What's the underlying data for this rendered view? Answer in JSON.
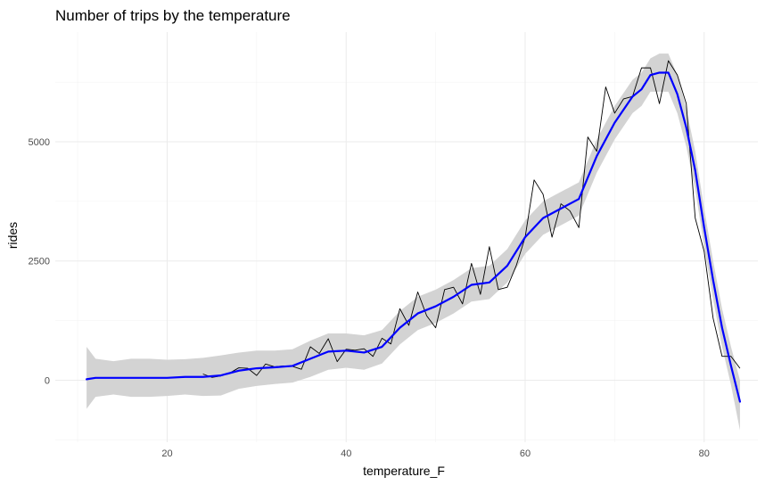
{
  "chart_data": {
    "type": "line",
    "title": "Number of trips by the temperature",
    "xlabel": "temperature_F",
    "ylabel": "rides",
    "xlim": [
      7.5,
      86
    ],
    "ylim": [
      -1300,
      7300
    ],
    "x_ticks": [
      20,
      40,
      60,
      80
    ],
    "y_ticks": [
      0,
      2500,
      5000
    ],
    "x_tick_labels": [
      "20",
      "40",
      "60",
      "80"
    ],
    "y_tick_labels": [
      "0",
      "2500",
      "5000"
    ],
    "grid": true,
    "legend": "none",
    "colors": {
      "raw": "#000000",
      "smooth": "#0000ff",
      "band": "#d3d3d3"
    },
    "series": [
      {
        "kind": "raw-line",
        "x": [
          24,
          25,
          26,
          27,
          28,
          29,
          30,
          31,
          32,
          33,
          34,
          35,
          36,
          37,
          38,
          39,
          40,
          41,
          42,
          43,
          44,
          45,
          46,
          47,
          48,
          49,
          50,
          51,
          52,
          53,
          54,
          55,
          56,
          57,
          58,
          59,
          60,
          61,
          62,
          63,
          64,
          65,
          66,
          67,
          68,
          69,
          70,
          71,
          72,
          73,
          74,
          75,
          76,
          77,
          78,
          79,
          80,
          81,
          82,
          83,
          84
        ],
        "y": [
          130,
          60,
          90,
          150,
          260,
          250,
          100,
          340,
          280,
          300,
          290,
          230,
          700,
          560,
          870,
          390,
          650,
          630,
          660,
          500,
          880,
          760,
          1500,
          1150,
          1850,
          1350,
          1100,
          1900,
          1950,
          1600,
          2450,
          1800,
          2800,
          1900,
          1950,
          2400,
          3000,
          4200,
          3900,
          3000,
          3700,
          3550,
          3200,
          5100,
          4800,
          6150,
          5600,
          5900,
          5950,
          6550,
          6550,
          5800,
          6700,
          6400,
          5800,
          3400,
          2700,
          1300,
          500,
          500,
          250
        ]
      },
      {
        "kind": "smooth",
        "x": [
          11,
          12,
          14,
          16,
          18,
          20,
          22,
          24,
          26,
          28,
          30,
          32,
          34,
          36,
          38,
          40,
          42,
          44,
          46,
          48,
          50,
          52,
          54,
          56,
          58,
          60,
          62,
          64,
          66,
          68,
          70,
          72,
          73,
          74,
          75,
          76,
          77,
          78,
          79,
          80,
          81,
          82,
          83,
          84
        ],
        "y": [
          20,
          50,
          50,
          50,
          50,
          50,
          70,
          70,
          100,
          200,
          250,
          270,
          300,
          450,
          600,
          620,
          580,
          700,
          1100,
          1400,
          1550,
          1750,
          2000,
          2050,
          2400,
          3000,
          3400,
          3600,
          3800,
          4700,
          5400,
          5950,
          6100,
          6400,
          6450,
          6450,
          6000,
          5300,
          4400,
          3200,
          2100,
          1100,
          300,
          -450
        ]
      },
      {
        "kind": "confidence-band",
        "x": [
          11,
          12,
          14,
          16,
          18,
          20,
          22,
          24,
          26,
          28,
          30,
          32,
          34,
          36,
          38,
          40,
          42,
          44,
          46,
          48,
          50,
          52,
          54,
          56,
          58,
          60,
          62,
          64,
          66,
          68,
          70,
          72,
          73,
          74,
          75,
          76,
          77,
          78,
          79,
          80,
          81,
          82,
          83,
          84
        ],
        "upper": [
          700,
          450,
          400,
          450,
          450,
          430,
          440,
          470,
          520,
          580,
          620,
          620,
          650,
          830,
          980,
          980,
          940,
          1050,
          1450,
          1750,
          1900,
          2100,
          2350,
          2400,
          2750,
          3350,
          3750,
          3950,
          4150,
          5050,
          5750,
          6300,
          6450,
          6750,
          6850,
          6850,
          6400,
          5700,
          4800,
          3600,
          2500,
          1500,
          700,
          0
        ],
        "lower": [
          -600,
          -350,
          -300,
          -350,
          -350,
          -330,
          -300,
          -330,
          -320,
          -180,
          -120,
          -80,
          -50,
          70,
          220,
          260,
          220,
          350,
          750,
          1050,
          1200,
          1400,
          1650,
          1700,
          2050,
          2650,
          3050,
          3250,
          3450,
          4350,
          5050,
          5600,
          5750,
          6050,
          6050,
          6050,
          5600,
          4900,
          4000,
          2800,
          1700,
          700,
          -100,
          -1050
        ]
      }
    ]
  }
}
